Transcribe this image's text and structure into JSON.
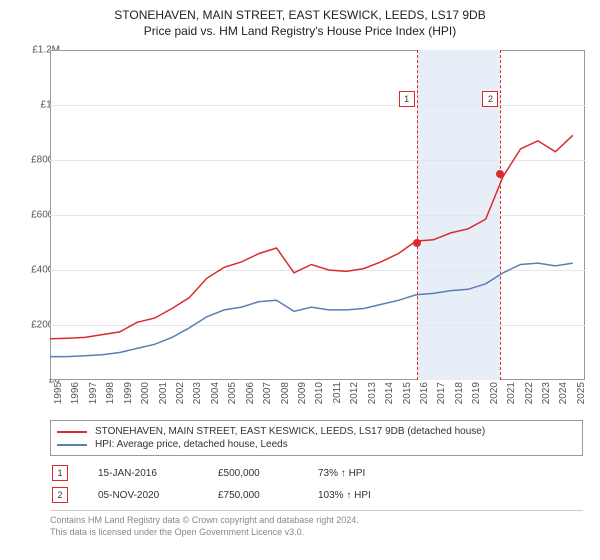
{
  "title_main": "STONEHAVEN, MAIN STREET, EAST KESWICK, LEEDS, LS17 9DB",
  "title_sub": "Price paid vs. HM Land Registry's House Price Index (HPI)",
  "chart": {
    "type": "line",
    "background_color": "#ffffff",
    "border_color": "#999999",
    "grid_color": "#e6e6e6",
    "x_years": [
      1995,
      1996,
      1997,
      1998,
      1999,
      2000,
      2001,
      2002,
      2003,
      2004,
      2005,
      2006,
      2007,
      2008,
      2009,
      2010,
      2011,
      2012,
      2013,
      2014,
      2015,
      2016,
      2017,
      2018,
      2019,
      2020,
      2021,
      2022,
      2023,
      2024,
      2025
    ],
    "x_min": 1995,
    "x_max": 2025.7,
    "y_min": 0,
    "y_max": 1200000,
    "y_ticks": [
      0,
      200000,
      400000,
      600000,
      800000,
      1000000,
      1200000
    ],
    "y_tick_labels": [
      "£0",
      "£200K",
      "£400K",
      "£600K",
      "£800K",
      "£1M",
      "£1.2M"
    ],
    "label_fontsize": 10,
    "highlight_band": {
      "from": 2016.04,
      "to": 2020.85,
      "color": "#e8eef8"
    },
    "vlines": [
      {
        "x": 2016.04,
        "color": "#d82c2c"
      },
      {
        "x": 2020.85,
        "color": "#d82c2c"
      }
    ],
    "series_red": {
      "color": "#d82c2c",
      "width": 1.5,
      "y": [
        150000,
        152000,
        155000,
        165000,
        175000,
        210000,
        225000,
        260000,
        300000,
        370000,
        410000,
        430000,
        460000,
        480000,
        390000,
        420000,
        400000,
        395000,
        405000,
        430000,
        460000,
        505000,
        510000,
        535000,
        550000,
        585000,
        740000,
        840000,
        870000,
        830000,
        890000
      ]
    },
    "series_blue": {
      "color": "#5b7fb2",
      "width": 1.5,
      "y": [
        85000,
        85000,
        88000,
        92000,
        100000,
        115000,
        130000,
        155000,
        190000,
        230000,
        255000,
        265000,
        285000,
        290000,
        250000,
        265000,
        255000,
        255000,
        260000,
        275000,
        290000,
        310000,
        315000,
        325000,
        330000,
        350000,
        390000,
        420000,
        425000,
        415000,
        425000
      ]
    },
    "markers": [
      {
        "n": "1",
        "x": 2016.04,
        "y": 500000,
        "box_y": 1050000,
        "color": "#d82c2c"
      },
      {
        "n": "2",
        "x": 2020.85,
        "y": 750000,
        "box_y": 1050000,
        "color": "#d82c2c"
      }
    ]
  },
  "legend": {
    "rows": [
      {
        "color": "#d82c2c",
        "label": "STONEHAVEN, MAIN STREET, EAST KESWICK, LEEDS, LS17 9DB (detached house)"
      },
      {
        "color": "#5b7fb2",
        "label": "HPI: Average price, detached house, Leeds"
      }
    ]
  },
  "points": [
    {
      "n": "1",
      "color": "#d82c2c",
      "date": "15-JAN-2016",
      "price": "£500,000",
      "pct": "73% ↑ HPI"
    },
    {
      "n": "2",
      "color": "#d82c2c",
      "date": "05-NOV-2020",
      "price": "£750,000",
      "pct": "103% ↑ HPI"
    }
  ],
  "footer_line1": "Contains HM Land Registry data © Crown copyright and database right 2024.",
  "footer_line2": "This data is licensed under the Open Government Licence v3.0."
}
